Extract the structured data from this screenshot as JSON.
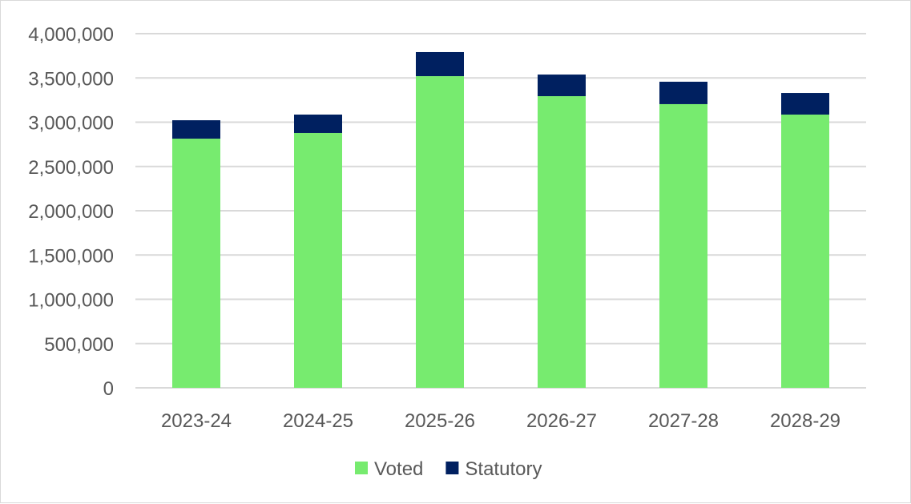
{
  "chart_data": {
    "type": "bar",
    "stacked": true,
    "title": "",
    "xlabel": "",
    "ylabel": "",
    "categories": [
      "2023-24",
      "2024-25",
      "2025-26",
      "2026-27",
      "2027-28",
      "2028-29"
    ],
    "series": [
      {
        "name": "Voted",
        "color": "#77eb6f",
        "values": [
          2814000,
          2878000,
          3520000,
          3294000,
          3204000,
          3086000
        ]
      },
      {
        "name": "Statutory",
        "color": "#002060",
        "values": [
          208000,
          208000,
          272000,
          244000,
          253000,
          244000
        ]
      }
    ],
    "ylim": [
      0,
      4000000
    ],
    "yticks": [
      "0",
      "500,000",
      "1,000,000",
      "1,500,000",
      "2,000,000",
      "2,500,000",
      "3,000,000",
      "3,500,000",
      "4,000,000"
    ],
    "grid": true,
    "grid_color": "#d9d9d9",
    "legend": "bottom"
  }
}
